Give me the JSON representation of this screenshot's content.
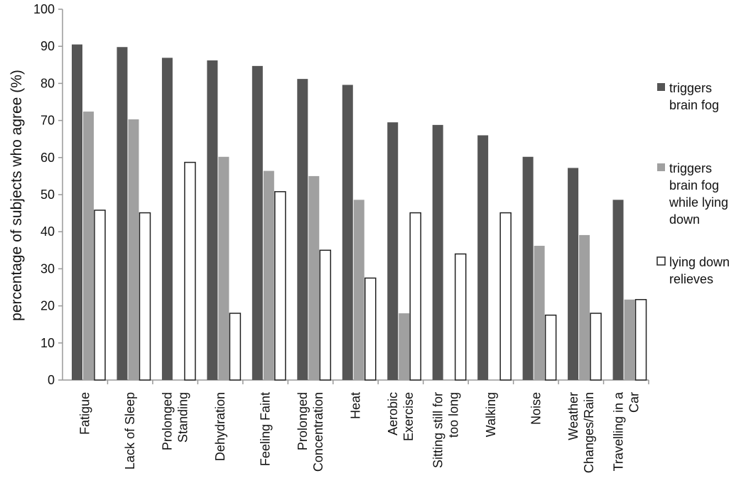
{
  "chart_data": {
    "type": "bar",
    "title": "",
    "xlabel": "",
    "ylabel": "percentage of subjects who agree (%)",
    "ylim": [
      0,
      100
    ],
    "yticks": [
      0,
      10,
      20,
      30,
      40,
      50,
      60,
      70,
      80,
      90,
      100
    ],
    "grid": false,
    "legend_position": "right",
    "categories": [
      [
        "Fatigue"
      ],
      [
        "Lack of Sleep"
      ],
      [
        "Prolonged",
        "Standing"
      ],
      [
        "Dehydration"
      ],
      [
        "Feeling Faint"
      ],
      [
        "Prolonged",
        "Concentration"
      ],
      [
        "Heat"
      ],
      [
        "Aerobic",
        "Exercise"
      ],
      [
        "Sitting still for",
        "too long"
      ],
      [
        "Walking"
      ],
      [
        "Noise"
      ],
      [
        "Weather",
        "Changes/Rain"
      ],
      [
        "Travelling in a",
        "Car"
      ]
    ],
    "series": [
      {
        "name": [
          "triggers",
          "brain fog"
        ],
        "color": "#555555",
        "values": [
          90.5,
          89.8,
          86.9,
          86.2,
          84.7,
          81.2,
          79.6,
          69.5,
          68.8,
          66.0,
          60.2,
          57.2,
          48.6
        ]
      },
      {
        "name": [
          "triggers",
          "brain fog",
          "while lying",
          "down"
        ],
        "color": "#a0a0a0",
        "values": [
          72.4,
          70.3,
          0,
          60.2,
          56.4,
          55.0,
          48.6,
          18.0,
          0,
          0,
          36.2,
          39.1,
          21.7
        ]
      },
      {
        "name": [
          "lying down",
          "relieves"
        ],
        "color": "#ffffff",
        "values": [
          45.8,
          45.1,
          58.7,
          18.0,
          50.8,
          35.0,
          27.5,
          45.1,
          34.0,
          45.1,
          17.5,
          18.0,
          21.7
        ]
      }
    ]
  }
}
